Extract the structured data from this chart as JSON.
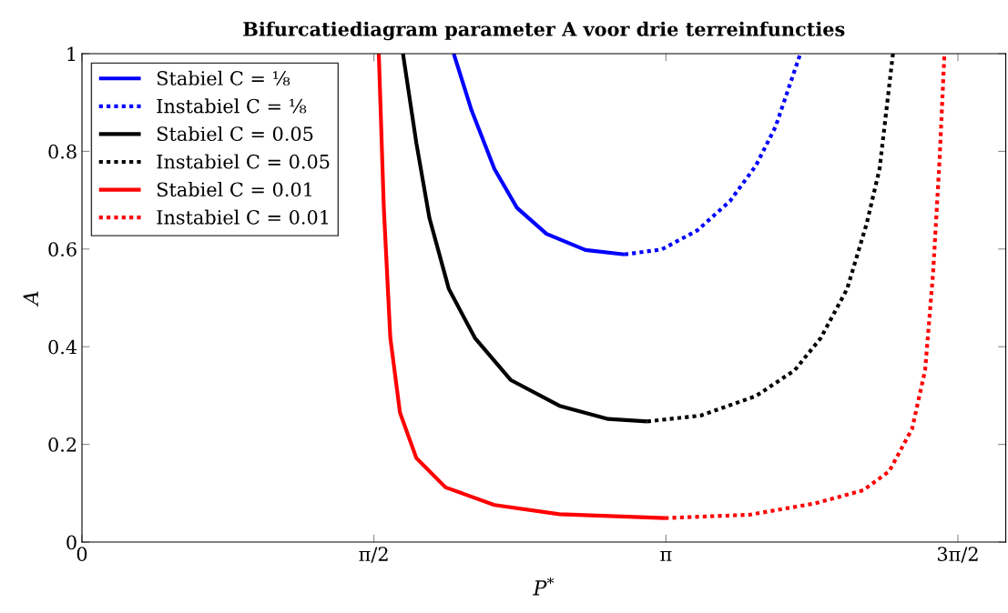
{
  "chart_data": {
    "type": "line",
    "title": "Bifurcatiediagram parameter A voor drie terreinfuncties",
    "xlabel": "P$^{*}$",
    "ylabel": "A",
    "xlim": [
      0,
      4.97
    ],
    "ylim": [
      0,
      1
    ],
    "xticks": [
      0,
      {
        "value": 1.5708,
        "label": "π/2"
      },
      {
        "value": 3.1416,
        "label": "π"
      },
      {
        "value": 4.7124,
        "label": "3π/2"
      }
    ],
    "yticks": [
      0,
      0.2,
      0.4,
      0.6,
      0.8,
      1
    ],
    "grid": false,
    "legend": "top left",
    "marker": "none",
    "series": [
      {
        "name": "Stabiel C = ⅛",
        "color": "#0000ff",
        "line_style": "solid",
        "x": [
          2.0,
          2.096,
          2.219,
          2.341,
          2.499,
          2.709,
          2.919
        ],
        "values": [
          1.0,
          0.884,
          0.764,
          0.684,
          0.631,
          0.598,
          0.589
        ]
      },
      {
        "name": "Instabiel C = ⅛",
        "color": "#0000ff",
        "line_style": "dotted",
        "x": [
          2.919,
          3.118,
          3.31,
          3.486,
          3.626,
          3.731,
          3.865
        ],
        "values": [
          0.589,
          0.599,
          0.638,
          0.698,
          0.771,
          0.85,
          1.0
        ]
      },
      {
        "name": "Stabiel C = 0.05",
        "color": "#000000",
        "line_style": "solid",
        "x": [
          1.727,
          1.799,
          1.869,
          1.974,
          2.114,
          2.306,
          2.569,
          2.831,
          3.041
        ],
        "values": [
          1.0,
          0.817,
          0.664,
          0.518,
          0.418,
          0.332,
          0.279,
          0.252,
          0.247
        ]
      },
      {
        "name": "Instabiel C = 0.05",
        "color": "#000000",
        "line_style": "dotted",
        "x": [
          3.041,
          3.328,
          3.626,
          3.835,
          3.975,
          4.116,
          4.221,
          4.291,
          4.363
        ],
        "values": [
          0.247,
          0.259,
          0.299,
          0.352,
          0.418,
          0.518,
          0.651,
          0.764,
          1.0
        ]
      },
      {
        "name": "Stabiel C = 0.01",
        "color": "#ff0000",
        "line_style": "solid",
        "x": [
          1.597,
          1.624,
          1.659,
          1.711,
          1.799,
          1.956,
          2.219,
          2.569,
          3.136
        ],
        "values": [
          1.0,
          0.684,
          0.418,
          0.265,
          0.172,
          0.112,
          0.076,
          0.057,
          0.049
        ]
      },
      {
        "name": "Instabiel C = 0.01",
        "color": "#ff0000",
        "line_style": "dotted",
        "x": [
          3.136,
          3.591,
          3.941,
          4.203,
          4.343,
          4.466,
          4.536,
          4.579,
          4.614,
          4.64
        ],
        "values": [
          0.049,
          0.056,
          0.079,
          0.106,
          0.145,
          0.232,
          0.352,
          0.551,
          0.784,
          1.0
        ]
      }
    ]
  }
}
